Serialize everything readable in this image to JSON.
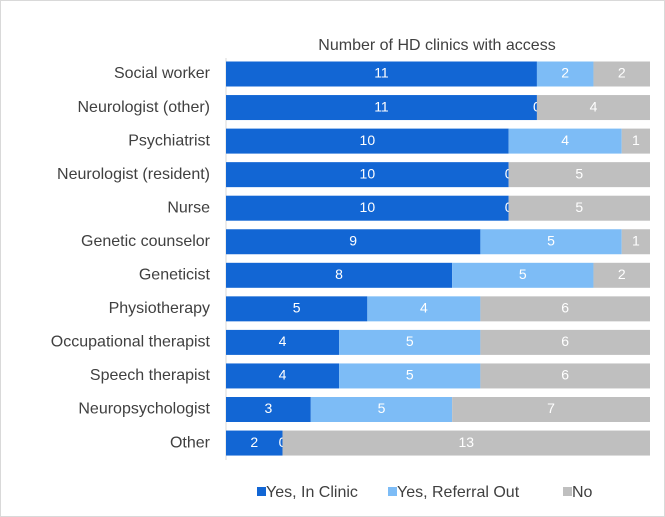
{
  "chart_data": {
    "type": "stacked_barh",
    "title": "Number of HD clinics with access",
    "categories": [
      "Social worker",
      "Neurologist (other)",
      "Psychiatrist",
      "Neurologist (resident)",
      "Nurse",
      "Genetic counselor",
      "Geneticist",
      "Physiotherapy",
      "Occupational therapist",
      "Speech therapist",
      "Neuropsychologist",
      "Other"
    ],
    "series": [
      {
        "name": "Yes, In Clinic",
        "color": "#1266d4",
        "values": [
          11,
          11,
          10,
          10,
          10,
          9,
          8,
          5,
          4,
          4,
          3,
          2
        ]
      },
      {
        "name": "Yes, Referral Out",
        "color": "#7dbcf6",
        "values": [
          2,
          0,
          4,
          0,
          0,
          5,
          5,
          4,
          5,
          5,
          5,
          0
        ]
      },
      {
        "name": "No",
        "color": "#bfbfbf",
        "values": [
          2,
          4,
          1,
          5,
          5,
          1,
          2,
          6,
          6,
          6,
          7,
          13
        ]
      }
    ],
    "legend": "bottom"
  }
}
